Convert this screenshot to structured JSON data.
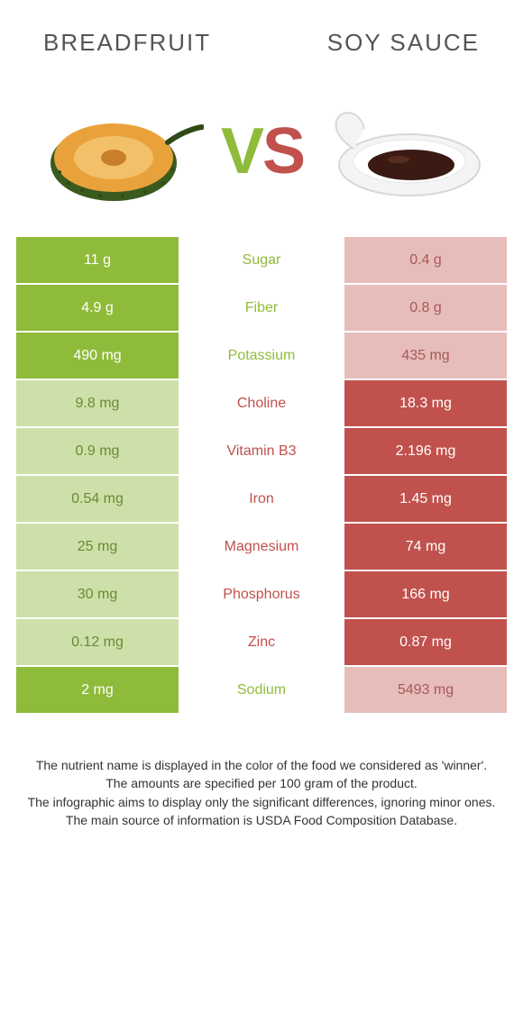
{
  "colors": {
    "left": "#8fbb3a",
    "right": "#c0514d",
    "left_dim": "#cde0a9",
    "right_dim": "#e7bdbb",
    "mid_left": "#8fbb3a",
    "mid_right": "#c0514d",
    "vs_v": "#8fbb3a",
    "vs_s": "#c0514d"
  },
  "title_left": "Breadfruit",
  "title_right": "Soy sauce",
  "rows": [
    {
      "name": "Sugar",
      "left": "11 g",
      "right": "0.4 g",
      "winner": "left"
    },
    {
      "name": "Fiber",
      "left": "4.9 g",
      "right": "0.8 g",
      "winner": "left"
    },
    {
      "name": "Potassium",
      "left": "490 mg",
      "right": "435 mg",
      "winner": "left"
    },
    {
      "name": "Choline",
      "left": "9.8 mg",
      "right": "18.3 mg",
      "winner": "right"
    },
    {
      "name": "Vitamin B3",
      "left": "0.9 mg",
      "right": "2.196 mg",
      "winner": "right"
    },
    {
      "name": "Iron",
      "left": "0.54 mg",
      "right": "1.45 mg",
      "winner": "right"
    },
    {
      "name": "Magnesium",
      "left": "25 mg",
      "right": "74 mg",
      "winner": "right"
    },
    {
      "name": "Phosphorus",
      "left": "30 mg",
      "right": "166 mg",
      "winner": "right"
    },
    {
      "name": "Zinc",
      "left": "0.12 mg",
      "right": "0.87 mg",
      "winner": "right"
    },
    {
      "name": "Sodium",
      "left": "2 mg",
      "right": "5493 mg",
      "winner": "left"
    }
  ],
  "footer_lines": [
    "The nutrient name is displayed in the color of the food we considered as 'winner'.",
    "The amounts are specified per 100 gram of the product.",
    "The infographic aims to display only the significant differences, ignoring minor ones.",
    "The main source of information is USDA Food Composition Database."
  ]
}
